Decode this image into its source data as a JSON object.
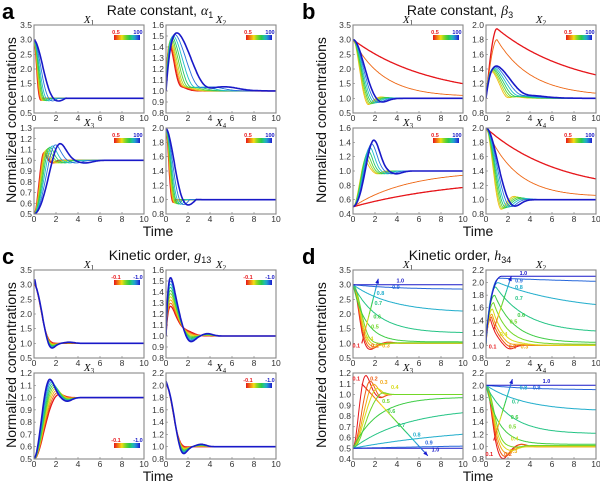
{
  "figure": {
    "ylabel": "Normalized concentrations",
    "xlabel": "Time"
  },
  "chart_data": [
    {
      "panel": "a",
      "type": "line",
      "title": "Rate constant, α",
      "title_param": "α",
      "title_sub": "1",
      "xlabel": "Time",
      "ylabel": "Normalized concentrations",
      "colorbar": {
        "min_label": "0.5",
        "max_label": "100",
        "min_color": "#e8161b",
        "max_color": "#1616c8"
      },
      "subplots": [
        {
          "name": "X",
          "sub": "1",
          "xlim": [
            0,
            10
          ],
          "ylim": [
            0.5,
            3.5
          ],
          "xticks": [
            "0",
            "2",
            "4",
            "6",
            "8",
            "10"
          ],
          "yticks": [
            "0.5",
            "1.0",
            "1.5",
            "2.0",
            "2.5",
            "3.0",
            "3.5"
          ],
          "start": 3.0,
          "end": 1.0,
          "model": "decay",
          "peak_range": [
            0.82,
            0.78
          ],
          "speed_range": [
            3.2,
            0.9
          ],
          "colorbar_pos": "top-right"
        },
        {
          "name": "X",
          "sub": "2",
          "xlim": [
            0,
            10
          ],
          "ylim": [
            0.8,
            1.6
          ],
          "xticks": [
            "0",
            "2",
            "4",
            "6",
            "8",
            "10"
          ],
          "yticks": [
            "0.8",
            "0.9",
            "1.0",
            "1.1",
            "1.2",
            "1.3",
            "1.4",
            "1.5",
            "1.6"
          ],
          "start": 1.0,
          "end": 1.0,
          "model": "pulse",
          "peak_range": [
            1.42,
            1.53
          ],
          "speed_range": [
            3.0,
            1.0
          ],
          "colorbar_pos": "top-right"
        },
        {
          "name": "X",
          "sub": "3",
          "xlim": [
            0,
            10
          ],
          "ylim": [
            0.5,
            1.3
          ],
          "xticks": [
            "0",
            "2",
            "4",
            "6",
            "8",
            "10"
          ],
          "yticks": [
            "0.5",
            "0.6",
            "0.7",
            "0.8",
            "0.9",
            "1.0",
            "1.1",
            "1.2",
            "1.3"
          ],
          "start": 0.5,
          "end": 1.0,
          "model": "rise",
          "peak_range": [
            1.11,
            1.2
          ],
          "speed_range": [
            2.6,
            0.95
          ],
          "colorbar_pos": "top-right"
        },
        {
          "name": "X",
          "sub": "4",
          "xlim": [
            0,
            10
          ],
          "ylim": [
            0.8,
            2.0
          ],
          "xticks": [
            "0",
            "2",
            "4",
            "6",
            "8",
            "10"
          ],
          "yticks": [
            "0.8",
            "1.0",
            "1.2",
            "1.4",
            "1.6",
            "1.8",
            "2.0"
          ],
          "start": 2.0,
          "end": 1.0,
          "model": "decay",
          "peak_range": [
            0.9,
            0.85
          ],
          "speed_range": [
            3.0,
            0.95
          ],
          "colorbar_pos": "top-right"
        }
      ],
      "series_count": 9
    },
    {
      "panel": "b",
      "type": "line",
      "title": "Rate constant, β",
      "title_param": "β",
      "title_sub": "3",
      "xlabel": "Time",
      "ylabel": "Normalized concentrations",
      "colorbar": {
        "min_label": "0.5",
        "max_label": "100",
        "min_color": "#e8161b",
        "max_color": "#1616c8"
      },
      "subplots": [
        {
          "name": "X",
          "sub": "1",
          "xlim": [
            0,
            10
          ],
          "ylim": [
            0.5,
            3.5
          ],
          "xticks": [
            "0",
            "2",
            "4",
            "6",
            "8",
            "10"
          ],
          "yticks": [
            "0.5",
            "1.0",
            "1.5",
            "2.0",
            "2.5",
            "3.0",
            "3.5"
          ],
          "start": 3.0,
          "end": 1.0,
          "model": "slowdecay",
          "slow_ends": [
            1.5,
            1.1
          ],
          "colorbar_pos": "top-right"
        },
        {
          "name": "X",
          "sub": "2",
          "xlim": [
            0,
            10
          ],
          "ylim": [
            0.8,
            2.0
          ],
          "xticks": [
            "0",
            "2",
            "4",
            "6",
            "8",
            "10"
          ],
          "yticks": [
            "0.8",
            "1.0",
            "1.2",
            "1.4",
            "1.6",
            "1.8",
            "2.0"
          ],
          "start": 1.0,
          "end": 1.0,
          "model": "slowpulse",
          "slow_peaks": [
            1.95,
            1.8
          ],
          "slow_ends": [
            1.32,
            1.07
          ],
          "colorbar_pos": "top-right"
        },
        {
          "name": "X",
          "sub": "3",
          "xlim": [
            0,
            10
          ],
          "ylim": [
            0.4,
            1.6
          ],
          "xticks": [
            "0",
            "2",
            "4",
            "6",
            "8",
            "10"
          ],
          "yticks": [
            "0.4",
            "0.6",
            "0.8",
            "1.0",
            "1.2",
            "1.4",
            "1.6"
          ],
          "start": 0.5,
          "end": 1.0,
          "model": "slowrise",
          "slow_ends": [
            0.77,
            0.94
          ],
          "colorbar_pos": "top-right"
        },
        {
          "name": "X",
          "sub": "4",
          "xlim": [
            0,
            10
          ],
          "ylim": [
            0.8,
            2.0
          ],
          "xticks": [
            "0",
            "2",
            "4",
            "6",
            "8",
            "10"
          ],
          "yticks": [
            "0.8",
            "1.0",
            "1.2",
            "1.4",
            "1.6",
            "1.8",
            "2.0"
          ],
          "start": 2.0,
          "end": 1.0,
          "model": "slowdecay",
          "slow_ends": [
            1.29,
            1.06
          ],
          "colorbar_pos": "top-right"
        }
      ],
      "series_count": 9
    },
    {
      "panel": "c",
      "type": "line",
      "title": "Kinetic order, g",
      "title_param": "g",
      "title_sub": "13",
      "xlabel": "Time",
      "ylabel": "Normalized concentrations",
      "colorbar": {
        "min_label": "-0.1",
        "max_label": "-1.0",
        "min_color": "#e8161b",
        "max_color": "#1616c8"
      },
      "subplots": [
        {
          "name": "X",
          "sub": "1",
          "xlim": [
            0,
            10
          ],
          "ylim": [
            0.5,
            3.5
          ],
          "xticks": [
            "0",
            "2",
            "4",
            "6",
            "8",
            "10"
          ],
          "yticks": [
            "0.5",
            "1.0",
            "1.5",
            "2.0",
            "2.5",
            "3.0",
            "3.5"
          ],
          "start": 3.0,
          "end": 1.0,
          "model": "gdecay",
          "peak_range": [
            0.98,
            0.73
          ],
          "colorbar_pos": "top-right"
        },
        {
          "name": "X",
          "sub": "2",
          "xlim": [
            0,
            10
          ],
          "ylim": [
            0.8,
            1.6
          ],
          "xticks": [
            "0",
            "2",
            "4",
            "6",
            "8",
            "10"
          ],
          "yticks": [
            "0.8",
            "0.9",
            "1.0",
            "1.1",
            "1.2",
            "1.3",
            "1.4",
            "1.5",
            "1.6"
          ],
          "start": 1.0,
          "end": 1.0,
          "model": "gpulse",
          "peak_range": [
            1.27,
            1.53
          ],
          "colorbar_pos": "top-right"
        },
        {
          "name": "X",
          "sub": "3",
          "xlim": [
            0,
            10
          ],
          "ylim": [
            0.5,
            1.2
          ],
          "xticks": [
            "0",
            "2",
            "4",
            "6",
            "8",
            "10"
          ],
          "yticks": [
            "0.5",
            "0.6",
            "0.7",
            "0.8",
            "0.9",
            "1.0",
            "1.1",
            "1.2"
          ],
          "start": 0.5,
          "end": 1.0,
          "model": "grise",
          "peak_range": [
            1.04,
            1.18
          ],
          "colorbar_pos": "bottom-right"
        },
        {
          "name": "X",
          "sub": "4",
          "xlim": [
            0,
            10
          ],
          "ylim": [
            0.8,
            2.2
          ],
          "xticks": [
            "0",
            "2",
            "4",
            "6",
            "8",
            "10"
          ],
          "yticks": [
            "0.8",
            "1.0",
            "1.2",
            "1.4",
            "1.6",
            "1.8",
            "2.0",
            "2.2"
          ],
          "start": 2.0,
          "end": 1.0,
          "model": "gdecay",
          "peak_range": [
            0.98,
            0.83
          ],
          "colorbar_pos": "top-right"
        }
      ],
      "series_count": 10
    },
    {
      "panel": "d",
      "type": "line",
      "title": "Kinetic order, h",
      "title_param": "h",
      "title_sub": "34",
      "xlabel": "Time",
      "ylabel": "Normalized concentrations",
      "series_labels": [
        "0.1",
        "0.2",
        "0.3",
        "0.4",
        "0.5",
        "0.6",
        "0.7",
        "0.8",
        "0.9",
        "1.0"
      ],
      "subplots": [
        {
          "name": "X",
          "sub": "1",
          "xlim": [
            0,
            10
          ],
          "ylim": [
            0.5,
            3.5
          ],
          "xticks": [
            "0",
            "2",
            "4",
            "6",
            "8",
            "10"
          ],
          "yticks": [
            "0.5",
            "1.0",
            "1.5",
            "2.0",
            "2.5",
            "3.0",
            "3.5"
          ],
          "start": 3.0,
          "end_values": [
            1.0,
            1.0,
            1.0,
            1.0,
            1.02,
            1.05,
            1.35,
            2.1,
            2.85,
            3.0
          ],
          "model": "hdecay"
        },
        {
          "name": "X",
          "sub": "2",
          "xlim": [
            0,
            10
          ],
          "ylim": [
            0.8,
            2.2
          ],
          "xticks": [
            "0",
            "2",
            "4",
            "6",
            "8",
            "10"
          ],
          "yticks": [
            "0.8",
            "1.0",
            "1.2",
            "1.4",
            "1.6",
            "1.8",
            "2.0",
            "2.2"
          ],
          "start": 1.0,
          "peaks": [
            1.42,
            1.45,
            1.5,
            1.58,
            1.68,
            1.8,
            1.93,
            2.0,
            2.07,
            2.1
          ],
          "end_values": [
            1.0,
            1.0,
            1.0,
            1.0,
            1.02,
            1.05,
            1.23,
            1.65,
            2.02,
            2.1
          ],
          "model": "hpulse"
        },
        {
          "name": "X",
          "sub": "3",
          "xlim": [
            0,
            10
          ],
          "ylim": [
            0.4,
            1.2
          ],
          "xticks": [
            "0",
            "2",
            "4",
            "6",
            "8",
            "10"
          ],
          "yticks": [
            "0.4",
            "0.5",
            "0.6",
            "0.7",
            "0.8",
            "0.9",
            "1.0",
            "1.1",
            "1.2"
          ],
          "start": 0.5,
          "end_values": [
            1.0,
            1.0,
            1.0,
            1.0,
            1.0,
            0.97,
            0.83,
            0.63,
            0.52,
            0.5
          ],
          "model": "hrise"
        },
        {
          "name": "X",
          "sub": "4",
          "xlim": [
            0,
            10
          ],
          "ylim": [
            0.8,
            2.2
          ],
          "xticks": [
            "0",
            "2",
            "4",
            "6",
            "8",
            "10"
          ],
          "yticks": [
            "0.8",
            "1.0",
            "1.2",
            "1.4",
            "1.6",
            "1.8",
            "2.0",
            "2.2"
          ],
          "start": 2.0,
          "end_values": [
            1.0,
            1.0,
            1.0,
            1.0,
            1.02,
            1.04,
            1.21,
            1.6,
            1.93,
            2.0
          ],
          "model": "hdecay"
        }
      ],
      "series_count": 10
    }
  ]
}
